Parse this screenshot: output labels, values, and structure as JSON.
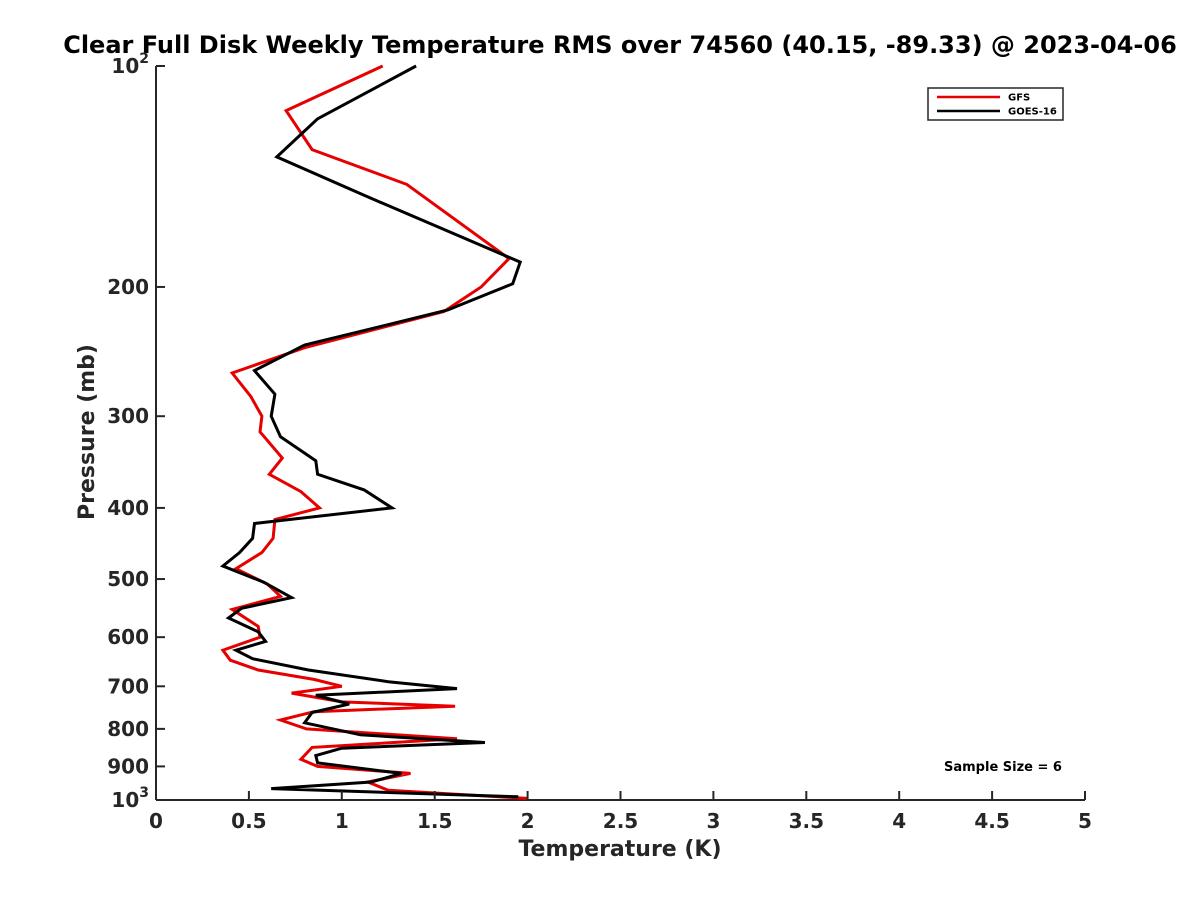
{
  "chart_data": {
    "type": "line",
    "title": "Clear Full Disk Weekly Temperature RMS over 74560 (40.15, -89.33) @ 2023-04-06",
    "xlabel": "Temperature (K)",
    "ylabel": "Pressure (mb)",
    "xlim": [
      0,
      5
    ],
    "ylim": [
      100,
      1000
    ],
    "y_scale": "log",
    "y_reversed": true,
    "x_ticks": [
      "0",
      "0.5",
      "1",
      "1.5",
      "2",
      "2.5",
      "3",
      "3.5",
      "4",
      "4.5",
      "5"
    ],
    "y_ticks": [
      {
        "value": 100,
        "base": "10",
        "exp": "2"
      },
      {
        "value": 200,
        "label": "200"
      },
      {
        "value": 300,
        "label": "300"
      },
      {
        "value": 400,
        "label": "400"
      },
      {
        "value": 500,
        "label": "500"
      },
      {
        "value": 600,
        "label": "600"
      },
      {
        "value": 700,
        "label": "700"
      },
      {
        "value": 800,
        "label": "800"
      },
      {
        "value": 900,
        "label": "900"
      },
      {
        "value": 1000,
        "base": "10",
        "exp": "3"
      }
    ],
    "legend_position": "top-right",
    "annotation": "Sample Size = 6",
    "series": [
      {
        "name": "GFS",
        "color": "#e60000",
        "points": [
          [
            1.22,
            100
          ],
          [
            0.7,
            115
          ],
          [
            0.84,
            130
          ],
          [
            1.35,
            145
          ],
          [
            1.9,
            183
          ],
          [
            1.75,
            200
          ],
          [
            1.55,
            216
          ],
          [
            0.8,
            242
          ],
          [
            0.41,
            262
          ],
          [
            0.51,
            282
          ],
          [
            0.57,
            300
          ],
          [
            0.56,
            315
          ],
          [
            0.68,
            342
          ],
          [
            0.61,
            360
          ],
          [
            0.78,
            380
          ],
          [
            0.88,
            400
          ],
          [
            0.64,
            415
          ],
          [
            0.63,
            440
          ],
          [
            0.57,
            460
          ],
          [
            0.43,
            484
          ],
          [
            0.6,
            508
          ],
          [
            0.67,
            528
          ],
          [
            0.41,
            550
          ],
          [
            0.55,
            580
          ],
          [
            0.56,
            600
          ],
          [
            0.36,
            625
          ],
          [
            0.4,
            645
          ],
          [
            0.55,
            665
          ],
          [
            0.85,
            685
          ],
          [
            1.0,
            700
          ],
          [
            0.73,
            715
          ],
          [
            1.0,
            735
          ],
          [
            1.61,
            745
          ],
          [
            0.85,
            758
          ],
          [
            0.67,
            778
          ],
          [
            0.81,
            800
          ],
          [
            1.62,
            825
          ],
          [
            0.84,
            848
          ],
          [
            0.78,
            880
          ],
          [
            0.87,
            900
          ],
          [
            1.37,
            920
          ],
          [
            1.14,
            945
          ],
          [
            1.25,
            970
          ],
          [
            2.0,
            995
          ]
        ]
      },
      {
        "name": "GOES-16",
        "color": "#000000",
        "points": [
          [
            1.4,
            100
          ],
          [
            0.87,
            118
          ],
          [
            0.65,
            133
          ],
          [
            1.12,
            150
          ],
          [
            1.96,
            185
          ],
          [
            1.92,
            198
          ],
          [
            1.57,
            215
          ],
          [
            0.8,
            240
          ],
          [
            0.53,
            260
          ],
          [
            0.64,
            280
          ],
          [
            0.62,
            300
          ],
          [
            0.67,
            320
          ],
          [
            0.86,
            345
          ],
          [
            0.87,
            360
          ],
          [
            1.12,
            378
          ],
          [
            1.27,
            400
          ],
          [
            0.53,
            420
          ],
          [
            0.52,
            440
          ],
          [
            0.45,
            460
          ],
          [
            0.36,
            480
          ],
          [
            0.58,
            505
          ],
          [
            0.73,
            530
          ],
          [
            0.46,
            548
          ],
          [
            0.39,
            565
          ],
          [
            0.55,
            590
          ],
          [
            0.59,
            608
          ],
          [
            0.43,
            625
          ],
          [
            0.52,
            642
          ],
          [
            0.82,
            665
          ],
          [
            1.25,
            690
          ],
          [
            1.62,
            705
          ],
          [
            0.86,
            720
          ],
          [
            1.04,
            740
          ],
          [
            0.84,
            760
          ],
          [
            0.8,
            785
          ],
          [
            1.1,
            815
          ],
          [
            1.77,
            835
          ],
          [
            1.0,
            850
          ],
          [
            0.86,
            870
          ],
          [
            0.87,
            890
          ],
          [
            1.32,
            920
          ],
          [
            1.16,
            945
          ],
          [
            0.62,
            965
          ],
          [
            1.95,
            990
          ]
        ]
      }
    ]
  }
}
